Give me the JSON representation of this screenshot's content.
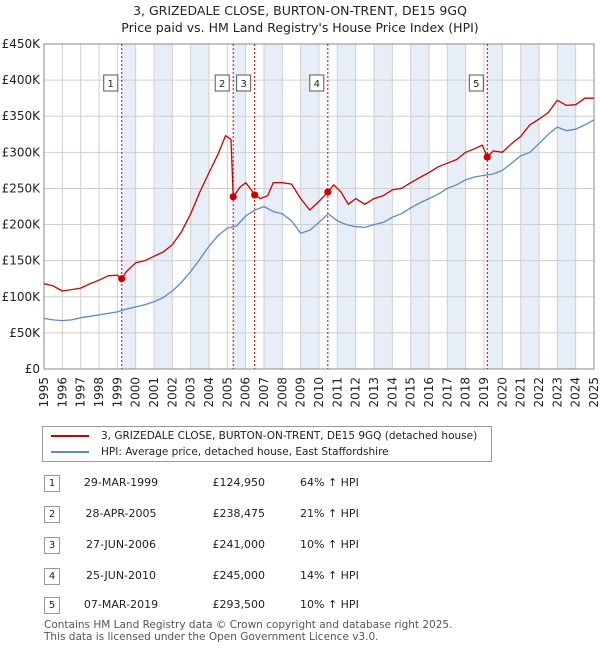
{
  "title_line1": "3, GRIZEDALE CLOSE, BURTON-ON-TRENT, DE15 9GQ",
  "title_line2": "Price paid vs. HM Land Registry's House Price Index (HPI)",
  "colors": {
    "property": "#cc0000",
    "hpi": "#5b8ac8",
    "band": "#e8eef8",
    "grid": "#cfcfcf",
    "vline": "#cc0000"
  },
  "legend": {
    "property_label": "3, GRIZEDALE CLOSE, BURTON-ON-TRENT, DE15 9GQ (detached house)",
    "hpi_label": "HPI: Average price, detached house, East Staffordshire"
  },
  "sales": [
    {
      "num": "1",
      "date": "29-MAR-1999",
      "price": "£124,950",
      "hpi": "64% ↑ HPI"
    },
    {
      "num": "2",
      "date": "28-APR-2005",
      "price": "£238,475",
      "hpi": "21% ↑ HPI"
    },
    {
      "num": "3",
      "date": "27-JUN-2006",
      "price": "£241,000",
      "hpi": "10% ↑ HPI"
    },
    {
      "num": "4",
      "date": "25-JUN-2010",
      "price": "£245,000",
      "hpi": "14% ↑ HPI"
    },
    {
      "num": "5",
      "date": "07-MAR-2019",
      "price": "£293,500",
      "hpi": "10% ↑ HPI"
    }
  ],
  "footer_line1": "Contains HM Land Registry data © Crown copyright and database right 2025.",
  "footer_line2": "This data is licensed under the Open Government Licence v3.0.",
  "chart_data": {
    "type": "line",
    "title": "3, GRIZEDALE CLOSE, BURTON-ON-TRENT, DE15 9GQ",
    "subtitle": "Price paid vs. HM Land Registry's House Price Index (HPI)",
    "xlim": [
      1995,
      2025
    ],
    "ylim": [
      0,
      450000
    ],
    "x_ticks": [
      1995,
      1996,
      1997,
      1998,
      1999,
      2000,
      2001,
      2002,
      2003,
      2004,
      2005,
      2006,
      2007,
      2008,
      2009,
      2010,
      2011,
      2012,
      2013,
      2014,
      2015,
      2016,
      2017,
      2018,
      2019,
      2020,
      2021,
      2022,
      2023,
      2024,
      2025
    ],
    "y_ticks": [
      0,
      50000,
      100000,
      150000,
      200000,
      250000,
      300000,
      350000,
      400000,
      450000
    ],
    "y_tick_labels": [
      "£0",
      "£50K",
      "£100K",
      "£150K",
      "£200K",
      "£250K",
      "£300K",
      "£350K",
      "£400K",
      "£450K"
    ],
    "grid": true,
    "legend_position": "below",
    "shaded_bands": [
      [
        1999.24,
        2000
      ],
      [
        2001,
        2002
      ],
      [
        2003,
        2004
      ],
      [
        2005.32,
        2006
      ],
      [
        2007,
        2008
      ],
      [
        2009,
        2010
      ],
      [
        2011,
        2012
      ],
      [
        2013,
        2014
      ],
      [
        2015,
        2016
      ],
      [
        2017,
        2018
      ],
      [
        2019.18,
        2020
      ],
      [
        2021,
        2022
      ],
      [
        2023,
        2024
      ]
    ],
    "sales": [
      {
        "label": "1",
        "x": 1999.24,
        "y": 124950
      },
      {
        "label": "2",
        "x": 2005.32,
        "y": 238475
      },
      {
        "label": "3",
        "x": 2006.49,
        "y": 241000
      },
      {
        "label": "4",
        "x": 2010.48,
        "y": 245000
      },
      {
        "label": "5",
        "x": 2019.18,
        "y": 293500
      }
    ],
    "series": [
      {
        "name": "3, GRIZEDALE CLOSE, BURTON-ON-TRENT, DE15 9GQ (detached house)",
        "color": "#cc0000",
        "points": [
          [
            1995,
            118000
          ],
          [
            1995.5,
            115000
          ],
          [
            1996,
            108000
          ],
          [
            1996.5,
            110000
          ],
          [
            1997,
            112000
          ],
          [
            1997.5,
            118000
          ],
          [
            1998,
            123000
          ],
          [
            1998.5,
            129000
          ],
          [
            1999,
            130000
          ],
          [
            1999.24,
            124950
          ],
          [
            1999.5,
            135000
          ],
          [
            2000,
            147000
          ],
          [
            2000.5,
            150000
          ],
          [
            2001,
            156000
          ],
          [
            2001.5,
            162000
          ],
          [
            2002,
            172000
          ],
          [
            2002.5,
            190000
          ],
          [
            2003,
            215000
          ],
          [
            2003.5,
            245000
          ],
          [
            2004,
            272000
          ],
          [
            2004.5,
            298000
          ],
          [
            2004.9,
            323000
          ],
          [
            2005.2,
            318000
          ],
          [
            2005.32,
            238475
          ],
          [
            2005.7,
            252000
          ],
          [
            2006,
            258000
          ],
          [
            2006.3,
            248000
          ],
          [
            2006.49,
            241000
          ],
          [
            2006.8,
            236000
          ],
          [
            2007.2,
            240000
          ],
          [
            2007.5,
            258000
          ],
          [
            2008,
            258000
          ],
          [
            2008.5,
            256000
          ],
          [
            2009,
            236000
          ],
          [
            2009.5,
            220000
          ],
          [
            2010,
            232000
          ],
          [
            2010.48,
            245000
          ],
          [
            2010.8,
            255000
          ],
          [
            2011.2,
            245000
          ],
          [
            2011.6,
            228000
          ],
          [
            2012,
            236000
          ],
          [
            2012.5,
            228000
          ],
          [
            2013,
            236000
          ],
          [
            2013.5,
            240000
          ],
          [
            2014,
            248000
          ],
          [
            2014.5,
            250000
          ],
          [
            2015,
            258000
          ],
          [
            2015.5,
            265000
          ],
          [
            2016,
            272000
          ],
          [
            2016.5,
            280000
          ],
          [
            2017,
            285000
          ],
          [
            2017.5,
            290000
          ],
          [
            2018,
            300000
          ],
          [
            2018.5,
            305000
          ],
          [
            2018.9,
            310000
          ],
          [
            2019.18,
            293500
          ],
          [
            2019.5,
            302000
          ],
          [
            2020,
            300000
          ],
          [
            2020.5,
            312000
          ],
          [
            2021,
            322000
          ],
          [
            2021.5,
            338000
          ],
          [
            2022,
            346000
          ],
          [
            2022.5,
            355000
          ],
          [
            2023,
            372000
          ],
          [
            2023.5,
            365000
          ],
          [
            2024,
            366000
          ],
          [
            2024.5,
            375000
          ],
          [
            2025,
            375000
          ]
        ]
      },
      {
        "name": "HPI: Average price, detached house, East Staffordshire",
        "color": "#5b8ac8",
        "points": [
          [
            1995,
            70000
          ],
          [
            1995.5,
            68000
          ],
          [
            1996,
            67000
          ],
          [
            1996.5,
            68000
          ],
          [
            1997,
            71000
          ],
          [
            1997.5,
            73000
          ],
          [
            1998,
            75000
          ],
          [
            1998.5,
            77000
          ],
          [
            1999,
            79000
          ],
          [
            1999.5,
            83000
          ],
          [
            2000,
            86000
          ],
          [
            2000.5,
            89000
          ],
          [
            2001,
            93000
          ],
          [
            2001.5,
            99000
          ],
          [
            2002,
            108000
          ],
          [
            2002.5,
            120000
          ],
          [
            2003,
            135000
          ],
          [
            2003.5,
            152000
          ],
          [
            2004,
            170000
          ],
          [
            2004.5,
            185000
          ],
          [
            2005,
            195000
          ],
          [
            2005.5,
            198000
          ],
          [
            2006,
            212000
          ],
          [
            2006.5,
            220000
          ],
          [
            2007,
            225000
          ],
          [
            2007.5,
            218000
          ],
          [
            2008,
            215000
          ],
          [
            2008.5,
            205000
          ],
          [
            2009,
            188000
          ],
          [
            2009.5,
            192000
          ],
          [
            2010,
            203000
          ],
          [
            2010.5,
            215000
          ],
          [
            2011,
            205000
          ],
          [
            2011.5,
            200000
          ],
          [
            2012,
            197000
          ],
          [
            2012.5,
            196000
          ],
          [
            2013,
            200000
          ],
          [
            2013.5,
            203000
          ],
          [
            2014,
            210000
          ],
          [
            2014.5,
            215000
          ],
          [
            2015,
            223000
          ],
          [
            2015.5,
            230000
          ],
          [
            2016,
            236000
          ],
          [
            2016.5,
            242000
          ],
          [
            2017,
            250000
          ],
          [
            2017.5,
            255000
          ],
          [
            2018,
            262000
          ],
          [
            2018.5,
            266000
          ],
          [
            2019,
            268000
          ],
          [
            2019.5,
            270000
          ],
          [
            2020,
            275000
          ],
          [
            2020.5,
            285000
          ],
          [
            2021,
            295000
          ],
          [
            2021.5,
            300000
          ],
          [
            2022,
            312000
          ],
          [
            2022.5,
            325000
          ],
          [
            2023,
            335000
          ],
          [
            2023.5,
            330000
          ],
          [
            2024,
            332000
          ],
          [
            2024.5,
            338000
          ],
          [
            2025,
            345000
          ]
        ]
      }
    ]
  }
}
